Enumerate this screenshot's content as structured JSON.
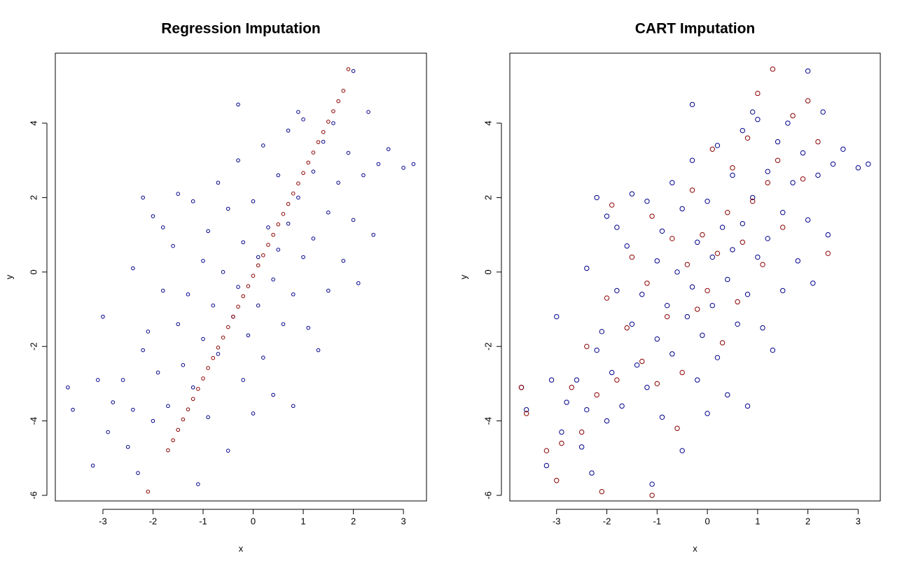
{
  "chart_data": [
    {
      "type": "scatter",
      "title": "Regression Imputation",
      "x_label": "x",
      "y_label": "y",
      "xlim": [
        -3.95,
        3.46
      ],
      "ylim": [
        -6.15,
        5.88
      ],
      "xticks": [
        -3,
        -2,
        -1,
        0,
        1,
        2,
        3
      ],
      "yticks": [
        -6,
        -4,
        -2,
        0,
        2,
        4
      ],
      "series": [
        {
          "color": "#00008b",
          "x": [
            -3.7,
            -3.6,
            -3.2,
            -3.1,
            -3.0,
            -2.9,
            -2.8,
            -2.6,
            -2.5,
            -2.4,
            -2.4,
            -2.2,
            -2.2,
            -2.1,
            -2.0,
            -2.0,
            -1.9,
            -1.8,
            -1.8,
            -1.7,
            -1.6,
            -1.5,
            -1.5,
            -1.4,
            -1.3,
            -1.2,
            -1.2,
            -1.1,
            -1.0,
            -1.0,
            -0.9,
            -0.9,
            -0.8,
            -0.7,
            -0.7,
            -0.6,
            -0.5,
            -0.5,
            -0.4,
            -0.3,
            -0.3,
            -0.2,
            -0.2,
            -0.1,
            0.0,
            0.0,
            0.1,
            0.1,
            0.2,
            0.2,
            0.3,
            0.4,
            0.4,
            0.5,
            0.5,
            0.6,
            0.7,
            0.7,
            0.8,
            0.8,
            0.9,
            1.0,
            1.0,
            1.1,
            1.2,
            1.2,
            1.3,
            1.4,
            1.5,
            1.5,
            1.6,
            1.7,
            1.8,
            1.9,
            2.0,
            2.0,
            2.1,
            2.2,
            2.3,
            2.4,
            2.5,
            2.7,
            3.0,
            3.2,
            -0.3,
            0.9,
            -2.3
          ],
          "y": [
            -3.1,
            -3.7,
            -5.2,
            -2.9,
            -1.2,
            -4.3,
            -3.5,
            -2.9,
            -4.7,
            0.1,
            -3.7,
            -2.1,
            2.0,
            -1.6,
            -4.0,
            1.5,
            -2.7,
            -0.5,
            1.2,
            -3.6,
            0.7,
            -1.4,
            2.1,
            -2.5,
            -0.6,
            1.9,
            -3.1,
            -5.7,
            0.3,
            -1.8,
            -3.9,
            1.1,
            -0.9,
            2.4,
            -2.2,
            0.0,
            -4.8,
            1.7,
            -1.2,
            3.0,
            -0.4,
            -2.9,
            0.8,
            -1.7,
            1.9,
            -3.8,
            0.4,
            -0.9,
            3.4,
            -2.3,
            1.2,
            -0.2,
            -3.3,
            2.6,
            0.6,
            -1.4,
            3.8,
            1.3,
            -0.6,
            -3.6,
            2.0,
            0.4,
            4.1,
            -1.5,
            2.7,
            0.9,
            -2.1,
            3.5,
            1.6,
            -0.5,
            4.0,
            2.4,
            0.3,
            3.2,
            1.4,
            5.4,
            -0.3,
            2.6,
            4.3,
            1.0,
            2.9,
            3.3,
            2.8,
            2.9,
            4.5,
            4.3,
            -5.4
          ]
        },
        {
          "color": "#8b0000",
          "x": [
            -1.7,
            -1.6,
            -1.5,
            -1.4,
            -1.3,
            -1.2,
            -1.1,
            -1.0,
            -0.9,
            -0.8,
            -0.7,
            -0.6,
            -0.5,
            -0.4,
            -0.3,
            -0.2,
            -0.1,
            0.0,
            0.1,
            0.2,
            0.3,
            0.4,
            0.5,
            0.6,
            0.7,
            0.8,
            0.9,
            1.0,
            1.1,
            1.2,
            1.3,
            1.4,
            1.5,
            1.6,
            1.7,
            1.8,
            1.9,
            -2.1
          ],
          "y": [
            -4.79,
            -4.52,
            -4.24,
            -3.96,
            -3.69,
            -3.41,
            -3.14,
            -2.86,
            -2.58,
            -2.31,
            -2.03,
            -1.76,
            -1.48,
            -1.2,
            -0.93,
            -0.65,
            -0.38,
            -0.1,
            0.18,
            0.45,
            0.73,
            1.0,
            1.28,
            1.56,
            1.83,
            2.11,
            2.38,
            2.66,
            2.94,
            3.21,
            3.49,
            3.76,
            4.04,
            4.32,
            4.59,
            4.87,
            5.45,
            -5.9
          ]
        }
      ]
    },
    {
      "type": "scatter",
      "title": "CART Imputation",
      "x_label": "x",
      "y_label": "y",
      "xlim": [
        -3.93,
        3.44
      ],
      "ylim": [
        -6.15,
        5.88
      ],
      "xticks": [
        -3,
        -2,
        -1,
        0,
        1,
        2,
        3
      ],
      "yticks": [
        -6,
        -4,
        -2,
        0,
        2,
        4
      ],
      "series": [
        {
          "color": "#00008b",
          "x": [
            -3.7,
            -3.6,
            -3.2,
            -3.1,
            -3.0,
            -2.9,
            -2.8,
            -2.6,
            -2.5,
            -2.4,
            -2.4,
            -2.2,
            -2.2,
            -2.1,
            -2.0,
            -2.0,
            -1.9,
            -1.8,
            -1.8,
            -1.7,
            -1.6,
            -1.5,
            -1.5,
            -1.4,
            -1.3,
            -1.2,
            -1.2,
            -1.1,
            -1.0,
            -1.0,
            -0.9,
            -0.9,
            -0.8,
            -0.7,
            -0.7,
            -0.6,
            -0.5,
            -0.5,
            -0.4,
            -0.3,
            -0.3,
            -0.2,
            -0.2,
            -0.1,
            0.0,
            0.0,
            0.1,
            0.1,
            0.2,
            0.2,
            0.3,
            0.4,
            0.4,
            0.5,
            0.5,
            0.6,
            0.7,
            0.7,
            0.8,
            0.8,
            0.9,
            1.0,
            1.0,
            1.1,
            1.2,
            1.2,
            1.3,
            1.4,
            1.5,
            1.5,
            1.6,
            1.7,
            1.8,
            1.9,
            2.0,
            2.0,
            2.1,
            2.2,
            2.3,
            2.4,
            2.5,
            2.7,
            3.0,
            3.2,
            -0.3,
            0.9,
            -2.3
          ],
          "y": [
            -3.1,
            -3.7,
            -5.2,
            -2.9,
            -1.2,
            -4.3,
            -3.5,
            -2.9,
            -4.7,
            0.1,
            -3.7,
            -2.1,
            2.0,
            -1.6,
            -4.0,
            1.5,
            -2.7,
            -0.5,
            1.2,
            -3.6,
            0.7,
            -1.4,
            2.1,
            -2.5,
            -0.6,
            1.9,
            -3.1,
            -5.7,
            0.3,
            -1.8,
            -3.9,
            1.1,
            -0.9,
            2.4,
            -2.2,
            0.0,
            -4.8,
            1.7,
            -1.2,
            3.0,
            -0.4,
            -2.9,
            0.8,
            -1.7,
            1.9,
            -3.8,
            0.4,
            -0.9,
            3.4,
            -2.3,
            1.2,
            -0.2,
            -3.3,
            2.6,
            0.6,
            -1.4,
            3.8,
            1.3,
            -0.6,
            -3.6,
            2.0,
            0.4,
            4.1,
            -1.5,
            2.7,
            0.9,
            -2.1,
            3.5,
            1.6,
            -0.5,
            4.0,
            2.4,
            0.3,
            3.2,
            1.4,
            5.4,
            -0.3,
            2.6,
            4.3,
            1.0,
            2.9,
            3.3,
            2.8,
            2.9,
            4.5,
            4.3,
            -5.4
          ]
        },
        {
          "color": "#8b0000",
          "x": [
            -3.7,
            -3.6,
            -3.2,
            -3.0,
            -2.9,
            -2.7,
            -2.5,
            -2.4,
            -2.2,
            -2.0,
            -1.9,
            -1.8,
            -1.6,
            -1.5,
            -1.3,
            -1.2,
            -1.1,
            -1.0,
            -0.8,
            -0.7,
            -0.6,
            -0.5,
            -0.4,
            -0.3,
            -0.2,
            -0.1,
            0.0,
            0.1,
            0.2,
            0.3,
            0.4,
            0.5,
            0.6,
            0.7,
            0.8,
            0.9,
            1.0,
            1.1,
            1.2,
            1.3,
            1.4,
            1.5,
            1.7,
            1.9,
            2.0,
            2.2,
            2.4,
            -2.1,
            -1.1
          ],
          "y": [
            -3.1,
            -3.8,
            -4.8,
            -5.6,
            -4.6,
            -3.1,
            -4.3,
            -2.0,
            -3.3,
            -0.7,
            1.8,
            -2.9,
            -1.5,
            0.4,
            -2.4,
            -0.3,
            1.5,
            -3.0,
            -1.2,
            0.9,
            -4.2,
            -2.7,
            0.2,
            2.2,
            -1.0,
            1.0,
            -0.5,
            3.3,
            0.5,
            -1.9,
            1.6,
            2.8,
            -0.8,
            0.8,
            3.6,
            1.9,
            4.8,
            0.2,
            2.4,
            5.45,
            3.0,
            1.2,
            4.2,
            2.5,
            4.6,
            3.5,
            0.5,
            -5.9,
            -6.0
          ]
        }
      ]
    }
  ]
}
